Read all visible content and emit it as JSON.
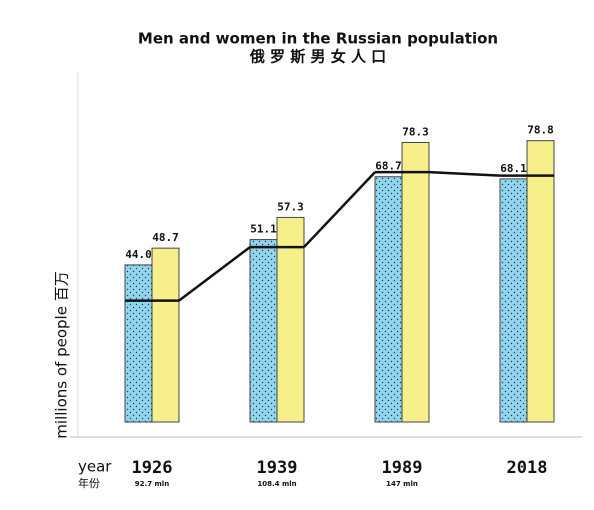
{
  "chart_data": {
    "type": "bar",
    "title": "Men and women in the Russian population",
    "subtitle": "俄 罗 斯 男 女 人 口",
    "y_label": "millions of people 百万",
    "x_label": "year",
    "x_label_zh": "年份",
    "categories": [
      "1926",
      "1939",
      "1989",
      "2018"
    ],
    "totals": [
      "92.7 mln",
      "108.4 mln",
      "147 mln",
      null
    ],
    "series": [
      {
        "color": "#8fd6ee",
        "values": [
          44.0,
          51.1,
          68.7,
          68.1
        ],
        "value_labels": [
          "44.0",
          "51.1",
          "68.7",
          "68.1"
        ]
      },
      {
        "color": "#f6ef8a",
        "values": [
          48.7,
          57.3,
          78.3,
          78.8
        ],
        "value_labels": [
          "48.7",
          "57.3",
          "78.3",
          "78.8"
        ]
      }
    ],
    "line": {
      "color": "#111111",
      "values": [
        34,
        49,
        70,
        69
      ]
    }
  }
}
